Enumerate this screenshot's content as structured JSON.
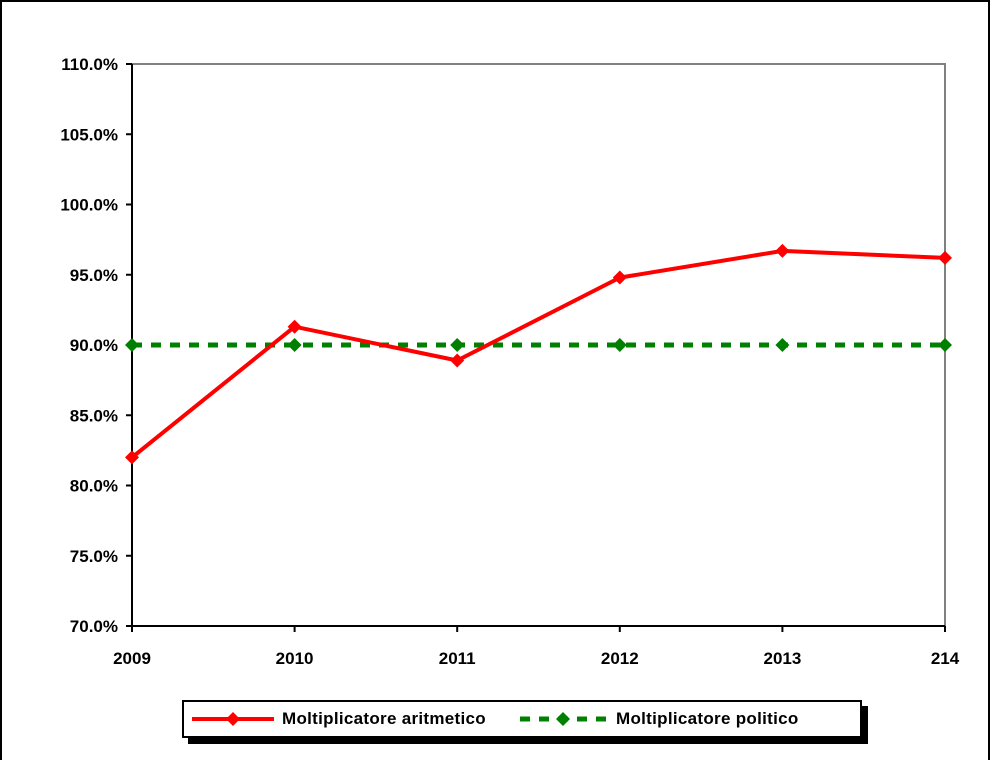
{
  "chart_data": {
    "type": "line",
    "categories": [
      "2009",
      "2010",
      "2011",
      "2012",
      "2013",
      "214"
    ],
    "series": [
      {
        "name": "Moltiplicatore aritmetico",
        "values": [
          82.0,
          91.3,
          88.9,
          94.8,
          96.7,
          96.2
        ],
        "color": "#ff0000",
        "style": "solid",
        "marker": "diamond"
      },
      {
        "name": "Moltiplicatore politico",
        "values": [
          90.0,
          90.0,
          90.0,
          90.0,
          90.0,
          90.0
        ],
        "color": "#008000",
        "style": "dashed",
        "marker": "diamond"
      }
    ],
    "y_ticks": [
      "70.0%",
      "75.0%",
      "80.0%",
      "85.0%",
      "90.0%",
      "95.0%",
      "100.0%",
      "105.0%",
      "110.0%"
    ],
    "ylim": [
      70,
      110
    ],
    "y_unit": "%",
    "grid": false,
    "legend_position": "bottom",
    "plot_border_color": "#808080"
  }
}
